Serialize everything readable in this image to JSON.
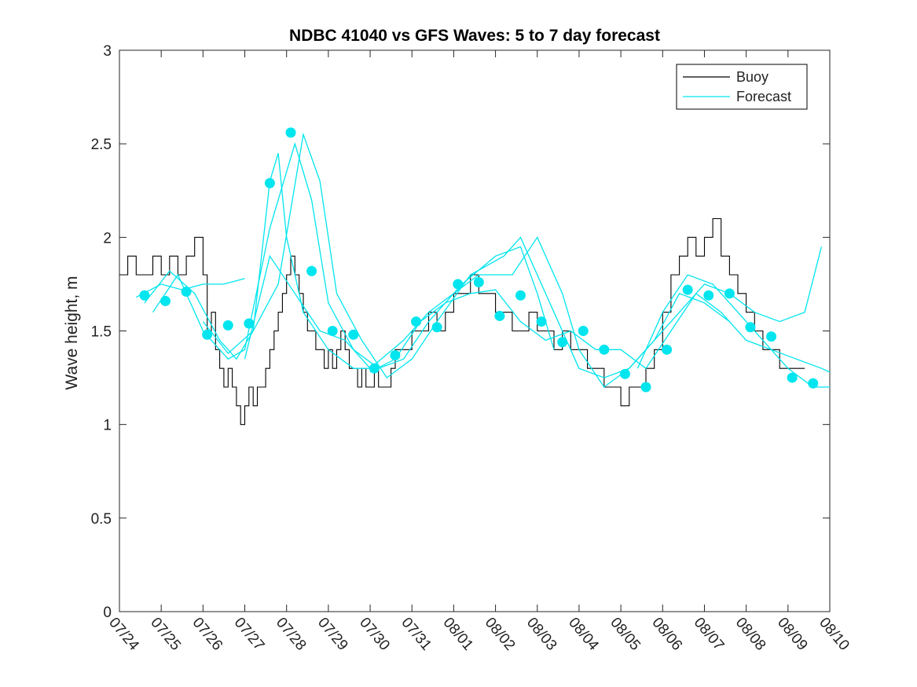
{
  "chart_data": {
    "type": "line",
    "title": "NDBC 41040 vs GFS Waves: 5 to 7 day forecast",
    "xlabel": "",
    "ylabel": "Wave height, m",
    "xlim": [
      "07/24",
      "08/10"
    ],
    "ylim": [
      0,
      3
    ],
    "yticks": [
      0,
      0.5,
      1,
      1.5,
      2,
      2.5,
      3
    ],
    "ytick_labels": [
      "0",
      "0.5",
      "1",
      "1.5",
      "2",
      "2.5",
      "3"
    ],
    "x_tick_labels": [
      "07/24",
      "07/25",
      "07/26",
      "07/27",
      "07/28",
      "07/29",
      "07/30",
      "07/31",
      "08/01",
      "08/02",
      "08/03",
      "08/04",
      "08/05",
      "08/06",
      "08/07",
      "08/08",
      "08/09",
      "08/10"
    ],
    "grid": false,
    "legend_location": "top-right",
    "colors": {
      "buoy": "#000000",
      "forecast": "#00e5ee"
    },
    "series": [
      {
        "name": "Buoy",
        "style": "step-line",
        "points": [
          [
            0.0,
            1.8
          ],
          [
            0.2,
            1.9
          ],
          [
            0.4,
            1.8
          ],
          [
            0.6,
            1.8
          ],
          [
            0.8,
            1.9
          ],
          [
            1.0,
            1.8
          ],
          [
            1.2,
            1.9
          ],
          [
            1.4,
            1.8
          ],
          [
            1.6,
            1.9
          ],
          [
            1.8,
            2.0
          ],
          [
            2.0,
            1.8
          ],
          [
            2.1,
            1.5
          ],
          [
            2.2,
            1.6
          ],
          [
            2.3,
            1.4
          ],
          [
            2.4,
            1.3
          ],
          [
            2.5,
            1.2
          ],
          [
            2.6,
            1.3
          ],
          [
            2.7,
            1.2
          ],
          [
            2.8,
            1.1
          ],
          [
            2.9,
            1.0
          ],
          [
            3.0,
            1.1
          ],
          [
            3.1,
            1.2
          ],
          [
            3.2,
            1.1
          ],
          [
            3.3,
            1.2
          ],
          [
            3.4,
            1.2
          ],
          [
            3.5,
            1.3
          ],
          [
            3.6,
            1.4
          ],
          [
            3.7,
            1.5
          ],
          [
            3.8,
            1.6
          ],
          [
            3.9,
            1.7
          ],
          [
            4.0,
            1.8
          ],
          [
            4.1,
            1.9
          ],
          [
            4.2,
            1.8
          ],
          [
            4.3,
            1.7
          ],
          [
            4.4,
            1.6
          ],
          [
            4.5,
            1.5
          ],
          [
            4.6,
            1.5
          ],
          [
            4.7,
            1.4
          ],
          [
            4.8,
            1.4
          ],
          [
            4.9,
            1.3
          ],
          [
            5.0,
            1.4
          ],
          [
            5.1,
            1.3
          ],
          [
            5.2,
            1.4
          ],
          [
            5.3,
            1.5
          ],
          [
            5.4,
            1.4
          ],
          [
            5.5,
            1.3
          ],
          [
            5.6,
            1.3
          ],
          [
            5.7,
            1.2
          ],
          [
            5.8,
            1.3
          ],
          [
            5.9,
            1.2
          ],
          [
            6.0,
            1.2
          ],
          [
            6.1,
            1.3
          ],
          [
            6.2,
            1.2
          ],
          [
            6.4,
            1.2
          ],
          [
            6.5,
            1.3
          ],
          [
            6.6,
            1.4
          ],
          [
            6.8,
            1.4
          ],
          [
            7.0,
            1.5
          ],
          [
            7.2,
            1.5
          ],
          [
            7.4,
            1.6
          ],
          [
            7.6,
            1.5
          ],
          [
            7.8,
            1.6
          ],
          [
            8.0,
            1.7
          ],
          [
            8.2,
            1.7
          ],
          [
            8.4,
            1.8
          ],
          [
            8.6,
            1.7
          ],
          [
            8.8,
            1.7
          ],
          [
            9.0,
            1.6
          ],
          [
            9.2,
            1.6
          ],
          [
            9.4,
            1.5
          ],
          [
            9.6,
            1.5
          ],
          [
            9.8,
            1.6
          ],
          [
            10.0,
            1.5
          ],
          [
            10.2,
            1.5
          ],
          [
            10.4,
            1.4
          ],
          [
            10.6,
            1.5
          ],
          [
            10.8,
            1.4
          ],
          [
            11.0,
            1.4
          ],
          [
            11.2,
            1.3
          ],
          [
            11.4,
            1.3
          ],
          [
            11.6,
            1.2
          ],
          [
            11.8,
            1.2
          ],
          [
            12.0,
            1.1
          ],
          [
            12.2,
            1.2
          ],
          [
            12.4,
            1.2
          ],
          [
            12.6,
            1.3
          ],
          [
            12.8,
            1.4
          ],
          [
            13.0,
            1.6
          ],
          [
            13.2,
            1.8
          ],
          [
            13.4,
            1.9
          ],
          [
            13.6,
            2.0
          ],
          [
            13.8,
            1.9
          ],
          [
            14.0,
            2.0
          ],
          [
            14.2,
            2.1
          ],
          [
            14.4,
            1.9
          ],
          [
            14.6,
            1.8
          ],
          [
            14.8,
            1.7
          ],
          [
            15.0,
            1.6
          ],
          [
            15.2,
            1.5
          ],
          [
            15.4,
            1.4
          ],
          [
            15.6,
            1.4
          ],
          [
            15.8,
            1.3
          ],
          [
            16.0,
            1.3
          ],
          [
            16.2,
            1.3
          ],
          [
            16.4,
            1.3
          ]
        ]
      },
      {
        "name": "Forecast",
        "style": "line",
        "runs": [
          [
            [
              0.4,
              1.68
            ],
            [
              1.0,
              1.75
            ],
            [
              1.5,
              1.72
            ],
            [
              2.0,
              1.75
            ],
            [
              2.5,
              1.75
            ],
            [
              3.0,
              1.78
            ]
          ],
          [
            [
              0.6,
              1.65
            ],
            [
              1.2,
              1.82
            ],
            [
              1.8,
              1.7
            ],
            [
              2.4,
              1.45
            ],
            [
              2.8,
              1.35
            ],
            [
              3.2,
              1.5
            ],
            [
              3.6,
              2.3
            ],
            [
              3.8,
              2.45
            ],
            [
              4.0,
              2.0
            ],
            [
              4.4,
              1.6
            ],
            [
              5.0,
              1.4
            ],
            [
              5.6,
              1.3
            ],
            [
              6.0,
              1.3
            ]
          ],
          [
            [
              0.8,
              1.6
            ],
            [
              1.4,
              1.8
            ],
            [
              2.0,
              1.5
            ],
            [
              2.6,
              1.35
            ],
            [
              3.0,
              1.4
            ],
            [
              3.6,
              2.05
            ],
            [
              4.2,
              2.5
            ],
            [
              4.6,
              2.2
            ],
            [
              5.0,
              1.65
            ],
            [
              5.6,
              1.4
            ],
            [
              6.2,
              1.3
            ],
            [
              6.8,
              1.35
            ],
            [
              7.4,
              1.55
            ],
            [
              8.2,
              1.75
            ],
            [
              9.0,
              1.9
            ],
            [
              9.6,
              1.95
            ],
            [
              10.0,
              1.7
            ],
            [
              10.4,
              1.4
            ]
          ],
          [
            [
              2.0,
              1.55
            ],
            [
              2.6,
              1.38
            ],
            [
              3.2,
              1.5
            ],
            [
              3.8,
              1.75
            ],
            [
              4.4,
              2.55
            ],
            [
              4.8,
              2.3
            ],
            [
              5.2,
              1.7
            ],
            [
              5.8,
              1.45
            ],
            [
              6.4,
              1.25
            ],
            [
              7.0,
              1.35
            ],
            [
              7.6,
              1.55
            ],
            [
              8.4,
              1.8
            ],
            [
              9.2,
              1.9
            ],
            [
              9.6,
              2.0
            ],
            [
              10.4,
              1.6
            ],
            [
              11.0,
              1.3
            ],
            [
              11.6,
              1.25
            ],
            [
              12.2,
              1.3
            ],
            [
              12.8,
              1.45
            ],
            [
              13.4,
              1.7
            ],
            [
              14.0,
              1.65
            ],
            [
              14.6,
              1.55
            ]
          ],
          [
            [
              3.0,
              1.35
            ],
            [
              3.6,
              1.9
            ],
            [
              4.2,
              1.7
            ],
            [
              4.8,
              1.5
            ],
            [
              5.4,
              1.45
            ],
            [
              6.0,
              1.3
            ],
            [
              6.8,
              1.45
            ],
            [
              7.4,
              1.6
            ],
            [
              8.0,
              1.7
            ],
            [
              8.6,
              1.8
            ],
            [
              9.4,
              1.8
            ],
            [
              10.0,
              2.0
            ],
            [
              10.6,
              1.7
            ],
            [
              11.0,
              1.4
            ],
            [
              11.6,
              1.2
            ],
            [
              12.2,
              1.3
            ],
            [
              12.8,
              1.45
            ],
            [
              13.4,
              1.6
            ],
            [
              14.0,
              1.75
            ],
            [
              14.6,
              1.7
            ],
            [
              15.2,
              1.6
            ],
            [
              15.8,
              1.55
            ],
            [
              16.4,
              1.6
            ],
            [
              16.8,
              1.95
            ]
          ],
          [
            [
              6.0,
              1.28
            ],
            [
              6.6,
              1.35
            ],
            [
              7.2,
              1.55
            ],
            [
              7.8,
              1.65
            ],
            [
              8.4,
              1.7
            ],
            [
              9.0,
              1.72
            ],
            [
              9.6,
              1.55
            ],
            [
              10.2,
              1.45
            ],
            [
              10.8,
              1.5
            ],
            [
              11.4,
              1.4
            ],
            [
              12.0,
              1.4
            ],
            [
              12.6,
              1.3
            ],
            [
              13.2,
              1.5
            ],
            [
              13.8,
              1.7
            ],
            [
              14.4,
              1.6
            ],
            [
              15.0,
              1.45
            ],
            [
              15.6,
              1.4
            ],
            [
              16.2,
              1.35
            ],
            [
              16.8,
              1.3
            ],
            [
              17.0,
              1.28
            ]
          ],
          [
            [
              12.4,
              1.3
            ],
            [
              13.0,
              1.6
            ],
            [
              13.6,
              1.8
            ],
            [
              14.2,
              1.75
            ],
            [
              14.8,
              1.6
            ],
            [
              15.4,
              1.45
            ],
            [
              16.0,
              1.3
            ],
            [
              16.6,
              1.2
            ],
            [
              17.0,
              1.2
            ]
          ]
        ]
      },
      {
        "name": "",
        "style": "markers",
        "x": [
          0.6,
          1.1,
          1.6,
          2.1,
          2.6,
          3.1,
          3.6,
          4.1,
          4.6,
          5.1,
          5.6,
          6.1,
          6.6,
          7.1,
          7.6,
          8.1,
          8.6,
          9.1,
          9.6,
          10.1,
          10.6,
          11.1,
          11.6,
          12.1,
          12.6,
          13.1,
          13.6,
          14.1,
          14.6,
          15.1,
          15.6,
          16.1,
          16.6
        ],
        "y": [
          1.69,
          1.66,
          1.71,
          1.48,
          1.53,
          1.54,
          2.29,
          2.56,
          1.82,
          1.5,
          1.48,
          1.3,
          1.37,
          1.55,
          1.52,
          1.75,
          1.76,
          1.58,
          1.69,
          1.55,
          1.44,
          1.5,
          1.4,
          1.27,
          1.2,
          1.4,
          1.72,
          1.69,
          1.7,
          1.52,
          1.47,
          1.25,
          1.22
        ]
      }
    ]
  },
  "legend": {
    "entries": [
      {
        "label": "Buoy",
        "color": "#000000"
      },
      {
        "label": "Forecast",
        "color": "#00e5ee"
      }
    ]
  }
}
